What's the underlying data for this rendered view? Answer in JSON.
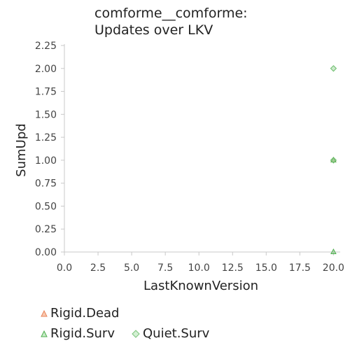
{
  "chart_data": {
    "type": "scatter",
    "title": [
      "comforme__comforme:",
      "Updates over LKV"
    ],
    "xlabel": "LastKnownVersion",
    "ylabel": "SumUpd",
    "xlim": [
      0,
      20.5
    ],
    "ylim": [
      0,
      2.25
    ],
    "xticks": [
      "0.0",
      "2.5",
      "5.0",
      "7.5",
      "10.0",
      "12.5",
      "15.0",
      "17.5",
      "20.0"
    ],
    "yticks": [
      "0.00",
      "0.25",
      "0.50",
      "0.75",
      "1.00",
      "1.25",
      "1.50",
      "1.75",
      "2.00",
      "2.25"
    ],
    "series": [
      {
        "name": "Rigid.Dead",
        "marker": "triangle",
        "color": "#f4a582",
        "points": [
          [
            20,
            1
          ]
        ]
      },
      {
        "name": "Rigid.Surv",
        "marker": "triangle",
        "color": "#5ab55a",
        "points": [
          [
            20,
            0
          ],
          [
            20,
            1
          ]
        ]
      },
      {
        "name": "Quiet.Surv",
        "marker": "diamond",
        "color": "#8fd18f",
        "points": [
          [
            20,
            2
          ],
          [
            20,
            1
          ]
        ]
      }
    ],
    "grid": false,
    "legend_position": "bottom-left"
  },
  "legend": {
    "rigid_dead": "Rigid.Dead",
    "rigid_surv": "Rigid.Surv",
    "quiet_surv": "Quiet.Surv"
  }
}
